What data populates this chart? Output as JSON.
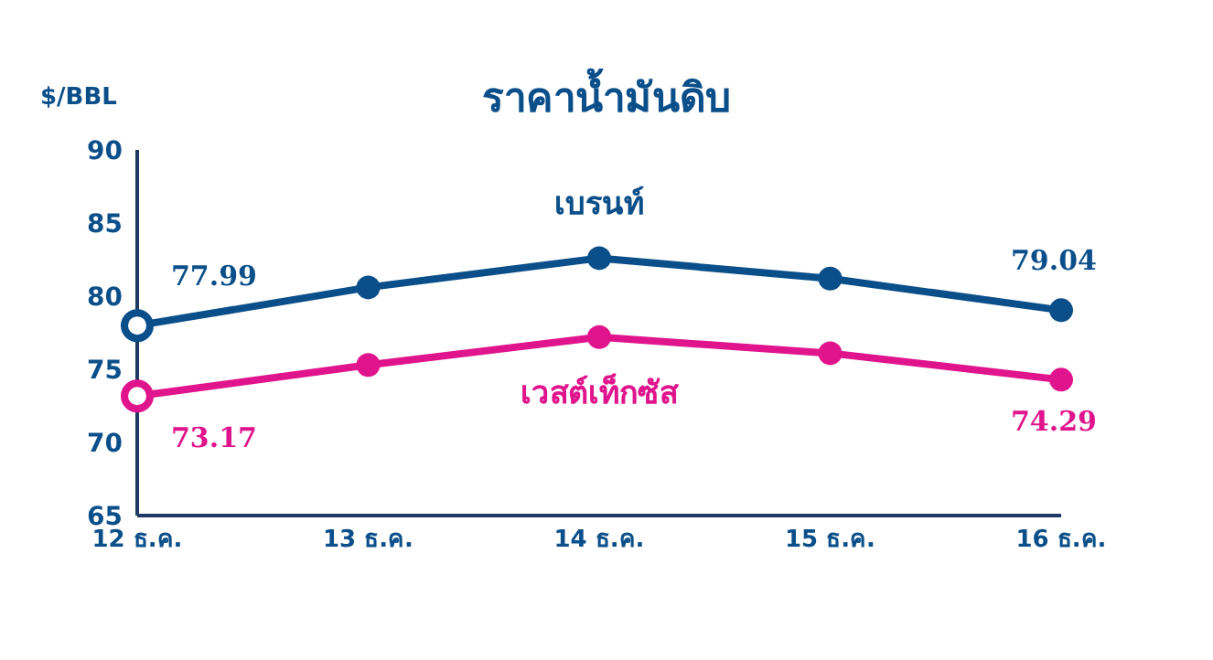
{
  "chart_data": {
    "type": "line",
    "title": "ราคาน้ำมันดิบ",
    "ylabel": "$/BBL",
    "categories": [
      "12 ธ.ค.",
      "13 ธ.ค.",
      "14 ธ.ค.",
      "15 ธ.ค.",
      "16 ธ.ค."
    ],
    "series": [
      {
        "name": "เบรนท์",
        "color": "#0b4f8a",
        "values": [
          77.99,
          80.6,
          82.6,
          81.2,
          79.04
        ],
        "value_labels": [
          "77.99",
          null,
          null,
          null,
          "79.04"
        ]
      },
      {
        "name": "เวสต์เท็กซัส",
        "color": "#e0148c",
        "values": [
          73.17,
          75.3,
          77.2,
          76.1,
          74.29
        ],
        "value_labels": [
          "73.17",
          null,
          null,
          null,
          "74.29"
        ]
      }
    ],
    "ylim": [
      65,
      90
    ],
    "yticks": [
      65,
      70,
      75,
      80,
      85,
      90
    ],
    "marker": "circle",
    "line_style": "solid"
  }
}
